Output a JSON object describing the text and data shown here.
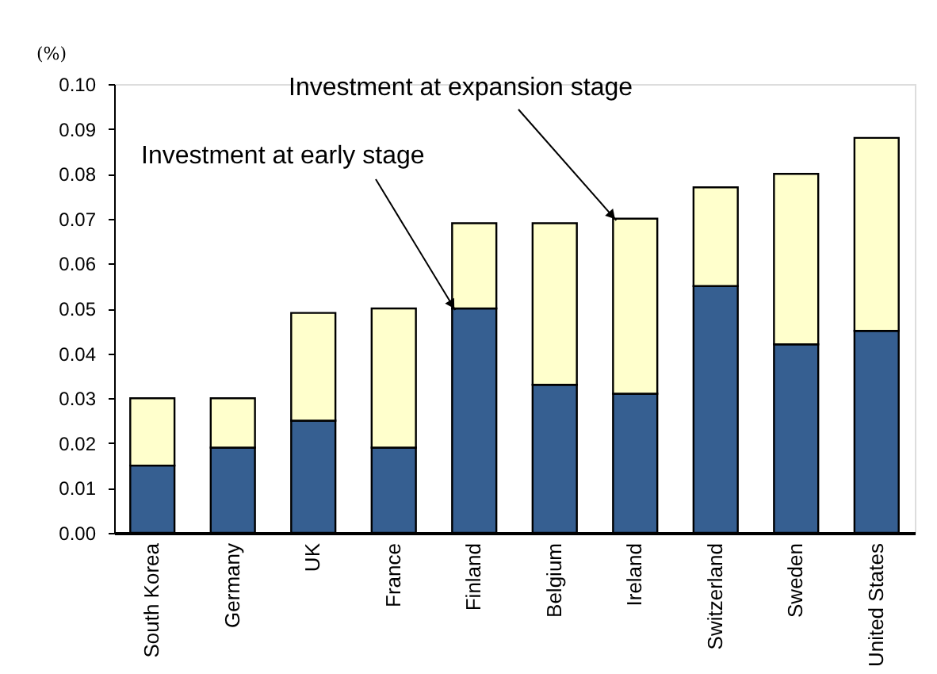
{
  "chart_data": {
    "type": "bar",
    "stacked": true,
    "ylabel": "(%)",
    "categories": [
      "South Korea",
      "Germany",
      "UK",
      "France",
      "Finland",
      "Belgium",
      "Ireland",
      "Switzerland",
      "Sweden",
      "United States"
    ],
    "series": [
      {
        "name": "Investment at early stage",
        "color": "#365f91",
        "values": [
          0.015,
          0.019,
          0.025,
          0.019,
          0.05,
          0.033,
          0.031,
          0.055,
          0.042,
          0.045
        ]
      },
      {
        "name": "Investment at expansion stage",
        "color": "#ffffcc",
        "values": [
          0.015,
          0.011,
          0.024,
          0.031,
          0.019,
          0.036,
          0.039,
          0.022,
          0.038,
          0.043
        ]
      }
    ],
    "ylim": [
      0,
      0.1
    ],
    "yticks": [
      {
        "value": 0,
        "label": "0.00"
      },
      {
        "value": 0.01,
        "label": "0.01"
      },
      {
        "value": 0.02,
        "label": "0.02"
      },
      {
        "value": 0.03,
        "label": "0.03"
      },
      {
        "value": 0.04,
        "label": "0.04"
      },
      {
        "value": 0.05,
        "label": "0.05"
      },
      {
        "value": 0.06,
        "label": "0.06"
      },
      {
        "value": 0.07,
        "label": "0.07"
      },
      {
        "value": 0.08,
        "label": "0.08"
      },
      {
        "value": 0.09,
        "label": "0.09"
      },
      {
        "value": 0.1,
        "label": "0.10"
      }
    ],
    "grid": false
  }
}
